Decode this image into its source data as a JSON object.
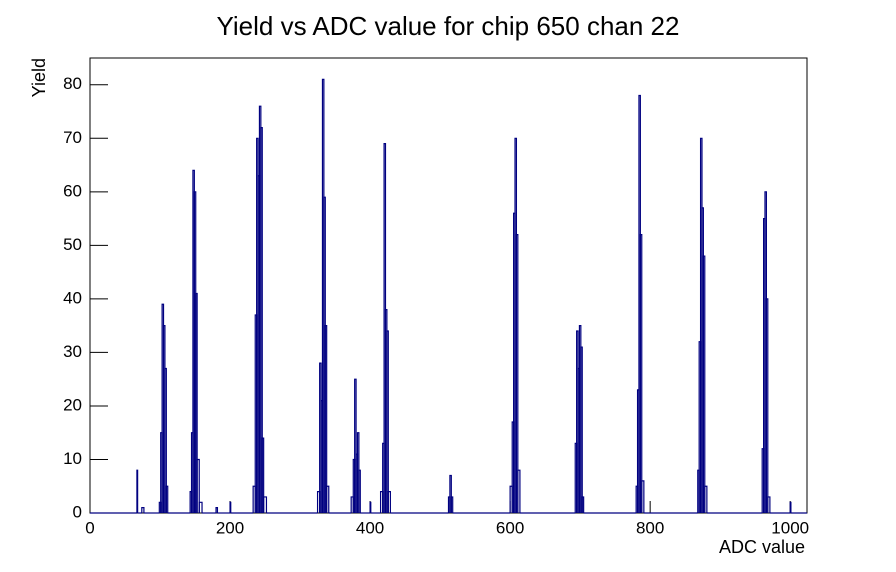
{
  "chart_data": {
    "type": "histogram",
    "title": "Yield vs ADC value for chip 650 chan 22",
    "x_label": "ADC value",
    "y_label": "Yield",
    "color": "#000080",
    "bins": [
      0,
      67,
      68,
      74,
      77,
      99,
      101,
      103,
      105,
      107,
      109,
      111,
      143,
      145,
      147,
      149,
      151,
      153,
      156,
      160,
      180,
      182,
      200,
      201,
      233,
      236,
      238,
      240,
      242,
      244,
      246,
      248,
      252,
      325,
      328,
      330,
      332,
      334,
      336,
      338,
      341,
      373,
      376,
      378,
      380,
      382,
      384,
      386,
      400,
      401,
      415,
      418,
      420,
      422,
      424,
      426,
      429,
      512,
      514,
      516,
      518,
      600,
      603,
      605,
      607,
      609,
      611,
      614,
      693,
      695,
      697,
      699,
      701,
      703,
      705,
      780,
      782,
      784,
      786,
      788,
      791,
      868,
      870,
      872,
      874,
      876,
      878,
      881,
      960,
      962,
      964,
      966,
      968,
      971,
      1000,
      1001,
      1024
    ],
    "counts": [
      0,
      8,
      0,
      1,
      0,
      2,
      15,
      39,
      35,
      27,
      5,
      0,
      4,
      15,
      64,
      60,
      41,
      10,
      2,
      0,
      1,
      0,
      2,
      0,
      5,
      37,
      70,
      63,
      76,
      72,
      14,
      3,
      0,
      4,
      28,
      21,
      81,
      59,
      35,
      5,
      0,
      3,
      10,
      25,
      11,
      15,
      8,
      0,
      2,
      0,
      4,
      13,
      69,
      38,
      34,
      4,
      0,
      3,
      7,
      3,
      0,
      5,
      17,
      56,
      70,
      52,
      8,
      0,
      13,
      34,
      27,
      35,
      31,
      3,
      0,
      5,
      23,
      78,
      52,
      6,
      0,
      8,
      32,
      70,
      57,
      48,
      5,
      0,
      12,
      55,
      60,
      40,
      3,
      0,
      2,
      0
    ],
    "xlim": [
      0,
      1024
    ],
    "xticks": [
      0,
      200,
      400,
      600,
      800,
      1000
    ],
    "ylim": [
      0,
      85
    ],
    "yticks": [
      0,
      10,
      20,
      30,
      40,
      50,
      60,
      70,
      80
    ]
  }
}
